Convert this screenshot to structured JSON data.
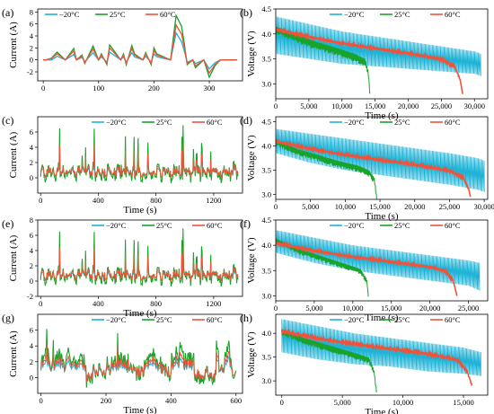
{
  "colors": {
    "minus20": "#1fb3d6",
    "plus25": "#18a32a",
    "plus60": "#f0533a"
  },
  "chart_data": [
    {
      "panel": "(a)",
      "type": "line",
      "xlabel": "",
      "ylabel": "Current (A)",
      "xlim": [
        -10,
        360
      ],
      "ylim": [
        -3.5,
        8.5
      ],
      "xticks": [
        0,
        100,
        200,
        300
      ],
      "yticks": [
        -2,
        0,
        2,
        4,
        6,
        8
      ],
      "legend": [
        "−20°C",
        "25°C",
        "60°C"
      ],
      "series": [
        {
          "name": "−20°C",
          "x": [
            0,
            5,
            5,
            15,
            15,
            25,
            25,
            40,
            40,
            55,
            55,
            60,
            60,
            70,
            70,
            75,
            75,
            90,
            90,
            100,
            100,
            105,
            105,
            115,
            115,
            120,
            120,
            140,
            140,
            145,
            145,
            150,
            150,
            160,
            160,
            165,
            165,
            180,
            180,
            185,
            185,
            195,
            195,
            200,
            200,
            205,
            205,
            230,
            230,
            240,
            240,
            250,
            250,
            255,
            255,
            260,
            260,
            270,
            270,
            275,
            275,
            290,
            290,
            300,
            300,
            310,
            310,
            320,
            320,
            330,
            330,
            350
          ],
          "y": [
            0,
            0,
            0,
            0,
            0,
            0.6,
            0.6,
            0,
            0,
            0.9,
            0.9,
            0,
            0,
            0.4,
            0.4,
            -0.3,
            -0.3,
            1.2,
            1.2,
            0,
            0,
            0.5,
            0.5,
            -0.4,
            -0.4,
            1.3,
            1.3,
            0,
            0,
            0.5,
            0.5,
            -0.4,
            -0.4,
            1.2,
            1.2,
            0.5,
            0.5,
            0,
            0,
            0.6,
            0.6,
            -0.4,
            -0.4,
            1.0,
            1.0,
            0.5,
            0.5,
            0,
            0,
            4.5,
            4.5,
            3.0,
            3.0,
            1.4,
            1.4,
            -0.4,
            -0.4,
            0,
            0,
            -0.6,
            -0.6,
            0,
            0,
            -1.5,
            -1.5,
            -0.5,
            -0.5,
            0,
            0,
            0,
            0,
            0
          ]
        },
        {
          "name": "25°C",
          "x": [
            0,
            5,
            5,
            15,
            15,
            25,
            25,
            40,
            40,
            55,
            55,
            60,
            60,
            70,
            70,
            75,
            75,
            90,
            90,
            100,
            100,
            105,
            105,
            115,
            115,
            120,
            120,
            140,
            140,
            145,
            145,
            150,
            150,
            160,
            160,
            165,
            165,
            180,
            180,
            185,
            185,
            195,
            195,
            200,
            200,
            205,
            205,
            230,
            230,
            240,
            240,
            250,
            250,
            255,
            255,
            260,
            260,
            270,
            270,
            275,
            275,
            290,
            290,
            300,
            300,
            310,
            310,
            320,
            320,
            330,
            330,
            350
          ],
          "y": [
            0,
            0,
            0,
            0.3,
            0.3,
            1.3,
            1.3,
            0,
            0,
            1.9,
            1.9,
            0,
            0,
            0.8,
            0.8,
            -0.6,
            -0.6,
            2.3,
            2.3,
            0,
            0,
            1.0,
            1.0,
            -0.8,
            -0.8,
            2.5,
            2.5,
            0,
            0,
            1.0,
            1.0,
            -0.8,
            -0.8,
            2.4,
            2.4,
            1.0,
            1.0,
            0,
            0,
            1.2,
            1.2,
            -0.8,
            -0.8,
            2.0,
            2.0,
            1.0,
            1.0,
            0,
            0,
            7.4,
            7.4,
            5.6,
            5.6,
            2.6,
            2.6,
            -0.8,
            -0.8,
            0,
            0,
            -1.3,
            -1.3,
            0,
            0,
            -2.9,
            -2.9,
            -1.0,
            -1.0,
            0,
            0,
            0,
            0,
            0
          ]
        },
        {
          "name": "60°C",
          "x": [
            0,
            5,
            5,
            15,
            15,
            25,
            25,
            40,
            40,
            55,
            55,
            60,
            60,
            70,
            70,
            75,
            75,
            90,
            90,
            100,
            100,
            105,
            105,
            115,
            115,
            120,
            120,
            140,
            140,
            145,
            145,
            150,
            150,
            160,
            160,
            165,
            165,
            180,
            180,
            185,
            185,
            195,
            195,
            200,
            200,
            205,
            205,
            230,
            230,
            240,
            240,
            250,
            250,
            255,
            255,
            260,
            260,
            270,
            270,
            275,
            275,
            290,
            290,
            300,
            300,
            310,
            310,
            320,
            320,
            330,
            330,
            350
          ],
          "y": [
            0,
            0,
            0,
            0.2,
            0.2,
            1.0,
            1.0,
            0,
            0,
            1.5,
            1.5,
            0,
            0,
            0.6,
            0.6,
            -0.5,
            -0.5,
            1.8,
            1.8,
            0,
            0,
            0.8,
            0.8,
            -0.6,
            -0.6,
            2.0,
            2.0,
            0,
            0,
            0.8,
            0.8,
            -0.6,
            -0.6,
            1.9,
            1.9,
            0.8,
            0.8,
            0,
            0,
            1.0,
            1.0,
            -0.6,
            -0.6,
            1.6,
            1.6,
            0.8,
            0.8,
            0,
            0,
            5.8,
            5.8,
            4.3,
            4.3,
            2.0,
            2.0,
            -0.6,
            -0.6,
            0,
            0,
            -1.0,
            -1.0,
            0,
            0,
            -2.2,
            -2.2,
            -0.8,
            -0.8,
            0,
            0,
            0,
            0,
            0
          ]
        }
      ]
    },
    {
      "panel": "(b)",
      "type": "line",
      "xlabel": "Time (s)",
      "ylabel": "Voltage (V)",
      "xlim": [
        0,
        32000
      ],
      "ylim": [
        2.7,
        4.5
      ],
      "xticks": [
        0,
        5000,
        10000,
        15000,
        20000,
        25000,
        30000
      ],
      "xticklabels": [
        "0",
        "5,000",
        "10,000",
        "15,000",
        "20,000",
        "25,000",
        "30,000"
      ],
      "yticks": [
        3.0,
        3.5,
        4.0,
        4.5
      ],
      "yticklabels": [
        "3.0",
        "3.5",
        "4.0",
        "4.5"
      ],
      "legend": [
        "−20°C",
        "25°C",
        "60°C"
      ],
      "series": [
        {
          "name": "−20°C",
          "envelope": true,
          "x": [
            0,
            5000,
            10000,
            15000,
            20000,
            25000,
            30000,
            31000
          ],
          "upper": [
            4.35,
            4.2,
            4.05,
            3.95,
            3.85,
            3.75,
            3.65,
            3.6
          ],
          "lower": [
            3.6,
            3.5,
            3.4,
            3.35,
            3.3,
            3.25,
            3.2,
            3.15
          ]
        },
        {
          "name": "25°C",
          "x": [
            0,
            3000,
            6000,
            9000,
            12000,
            13500,
            14000,
            14200
          ],
          "y": [
            4.1,
            3.95,
            3.8,
            3.68,
            3.55,
            3.45,
            3.2,
            2.8
          ],
          "noise": 0.12
        },
        {
          "name": "60°C",
          "x": [
            0,
            5000,
            10000,
            15000,
            20000,
            25000,
            27000,
            27800,
            28200
          ],
          "y": [
            4.1,
            3.95,
            3.82,
            3.72,
            3.62,
            3.5,
            3.35,
            3.1,
            2.8
          ],
          "noise": 0.04
        }
      ]
    },
    {
      "panel": "(c)",
      "type": "line",
      "xlabel": "Time (s)",
      "ylabel": "Current (A)",
      "xlim": [
        -20,
        1400
      ],
      "ylim": [
        -2,
        8
      ],
      "xticks": [
        0,
        400,
        800,
        1200
      ],
      "yticks": [
        0,
        2,
        4,
        6
      ],
      "legend": [
        "−20°C",
        "25°C",
        "60°C"
      ],
      "series": [
        {
          "name": "−20°C",
          "profile": "dynamic",
          "xmax": 1370,
          "scale": 0.45
        },
        {
          "name": "25°C",
          "profile": "dynamic",
          "xmax": 1370,
          "scale": 1.0
        },
        {
          "name": "60°C",
          "profile": "dynamic",
          "xmax": 1370,
          "scale": 0.6
        }
      ]
    },
    {
      "panel": "(d)",
      "type": "line",
      "xlabel": "Time (s)",
      "ylabel": "Voltage (V)",
      "xlim": [
        0,
        30500
      ],
      "ylim": [
        2.9,
        4.6
      ],
      "xticks": [
        0,
        5000,
        10000,
        15000,
        20000,
        25000,
        30000
      ],
      "xticklabels": [
        "0",
        "5,000",
        "10,000",
        "15,000",
        "20,000",
        "25,000",
        "30,000"
      ],
      "yticks": [
        3.0,
        3.5,
        4.0,
        4.5
      ],
      "yticklabels": [
        "3.0",
        "3.5",
        "4.0",
        "4.5"
      ],
      "legend": [
        "−20°C",
        "25°C",
        "60°C"
      ],
      "series": [
        {
          "name": "−20°C",
          "envelope": true,
          "x": [
            0,
            5000,
            10000,
            15000,
            20000,
            25000,
            29000,
            30000
          ],
          "upper": [
            4.35,
            4.25,
            4.15,
            4.05,
            3.95,
            3.85,
            3.75,
            3.7
          ],
          "lower": [
            3.85,
            3.65,
            3.5,
            3.4,
            3.3,
            3.2,
            3.1,
            3.05
          ]
        },
        {
          "name": "25°C",
          "x": [
            0,
            3000,
            6000,
            9000,
            12000,
            13500,
            14200,
            14500
          ],
          "y": [
            4.1,
            3.9,
            3.78,
            3.65,
            3.55,
            3.45,
            3.3,
            2.95
          ],
          "noise": 0.1
        },
        {
          "name": "60°C",
          "x": [
            0,
            5000,
            10000,
            15000,
            20000,
            25000,
            27000,
            27800,
            28000
          ],
          "y": [
            4.1,
            3.95,
            3.82,
            3.72,
            3.62,
            3.5,
            3.35,
            3.1,
            2.95
          ],
          "noise": 0.04
        }
      ]
    },
    {
      "panel": "(e)",
      "type": "line",
      "xlabel": "Time (s)",
      "ylabel": "Current (A)",
      "xlim": [
        -20,
        1400
      ],
      "ylim": [
        -2,
        8
      ],
      "xticks": [
        0,
        400,
        800,
        1200
      ],
      "yticks": [
        -2,
        0,
        2,
        4,
        6,
        8
      ],
      "legend": [
        "−20°C",
        "25°C",
        "60°C"
      ],
      "series": [
        {
          "name": "−20°C",
          "profile": "dynamic",
          "xmax": 1370,
          "scale": 0.45
        },
        {
          "name": "25°C",
          "profile": "dynamic",
          "xmax": 1370,
          "scale": 1.0
        },
        {
          "name": "60°C",
          "profile": "dynamic",
          "xmax": 1370,
          "scale": 0.6
        }
      ]
    },
    {
      "panel": "(f)",
      "type": "line",
      "xlabel": "Time (s)",
      "ylabel": "Voltage (V)",
      "xlim": [
        0,
        27500
      ],
      "ylim": [
        2.9,
        4.5
      ],
      "xticks": [
        0,
        5000,
        10000,
        15000,
        20000,
        25000
      ],
      "xticklabels": [
        "0",
        "5,000",
        "10,000",
        "15,000",
        "20,000",
        "25,000"
      ],
      "yticks": [
        3.0,
        3.5,
        4.0,
        4.5
      ],
      "yticklabels": [
        "3.0",
        "3.5",
        "4.0",
        "4.5"
      ],
      "legend": [
        "−20°C",
        "25°C",
        "60°C"
      ],
      "series": [
        {
          "name": "−20°C",
          "envelope": true,
          "x": [
            0,
            5000,
            10000,
            15000,
            20000,
            25000,
            26500
          ],
          "upper": [
            4.3,
            4.15,
            4.0,
            3.9,
            3.8,
            3.7,
            3.65
          ],
          "lower": [
            3.85,
            3.65,
            3.5,
            3.4,
            3.3,
            3.2,
            3.1
          ]
        },
        {
          "name": "25°C",
          "x": [
            0,
            3000,
            6000,
            9000,
            11000,
            11800,
            12000
          ],
          "y": [
            4.1,
            3.9,
            3.75,
            3.6,
            3.5,
            3.3,
            3.0
          ],
          "noise": 0.08
        },
        {
          "name": "60°C",
          "x": [
            0,
            5000,
            10000,
            15000,
            20000,
            22000,
            23000,
            23500
          ],
          "y": [
            4.05,
            3.9,
            3.78,
            3.68,
            3.58,
            3.5,
            3.3,
            3.0
          ],
          "noise": 0.04
        }
      ]
    },
    {
      "panel": "(g)",
      "type": "line",
      "xlabel": "Time (s)",
      "ylabel": "Current (A)",
      "xlim": [
        -10,
        620
      ],
      "ylim": [
        -2,
        8
      ],
      "xticks": [
        0,
        200,
        400,
        600
      ],
      "yticks": [
        0,
        2,
        4,
        6
      ],
      "legend": [
        "−20°C",
        "25°C",
        "60°C"
      ],
      "series": [
        {
          "name": "−20°C",
          "profile": "us06",
          "xmax": 600,
          "scale": 0.5
        },
        {
          "name": "25°C",
          "profile": "us06",
          "xmax": 600,
          "scale": 1.0
        },
        {
          "name": "60°C",
          "profile": "us06",
          "xmax": 600,
          "scale": 0.65
        }
      ]
    },
    {
      "panel": "(h)",
      "type": "line",
      "xlabel": "Time (s)",
      "ylabel": "Voltage (V)",
      "xlim": [
        -500,
        17000
      ],
      "ylim": [
        2.7,
        4.4
      ],
      "xticks": [
        0,
        5000,
        10000,
        15000
      ],
      "xticklabels": [
        "0",
        "5,000",
        "10,000",
        "15,000"
      ],
      "yticks": [
        3.0,
        3.5,
        4.0
      ],
      "yticklabels": [
        "3.0",
        "3.5",
        "4.0"
      ],
      "legend": [
        "−20°C",
        "25°C",
        "60°C"
      ],
      "series": [
        {
          "name": "−20°C",
          "envelope": true,
          "x": [
            0,
            3000,
            6000,
            9000,
            12000,
            15000,
            16500
          ],
          "upper": [
            4.3,
            4.15,
            4.0,
            3.9,
            3.8,
            3.7,
            3.6
          ],
          "lower": [
            3.6,
            3.45,
            3.35,
            3.3,
            3.2,
            3.15,
            3.1
          ]
        },
        {
          "name": "25°C",
          "x": [
            0,
            2000,
            4000,
            6000,
            7200,
            7600,
            7800
          ],
          "y": [
            4.05,
            3.85,
            3.7,
            3.55,
            3.45,
            3.2,
            2.8
          ],
          "noise": 0.1
        },
        {
          "name": "60°C",
          "x": [
            0,
            3000,
            6000,
            9000,
            12000,
            14500,
            15300,
            15700
          ],
          "y": [
            4.05,
            3.9,
            3.78,
            3.68,
            3.58,
            3.45,
            3.2,
            2.9
          ],
          "noise": 0.04
        }
      ]
    }
  ]
}
